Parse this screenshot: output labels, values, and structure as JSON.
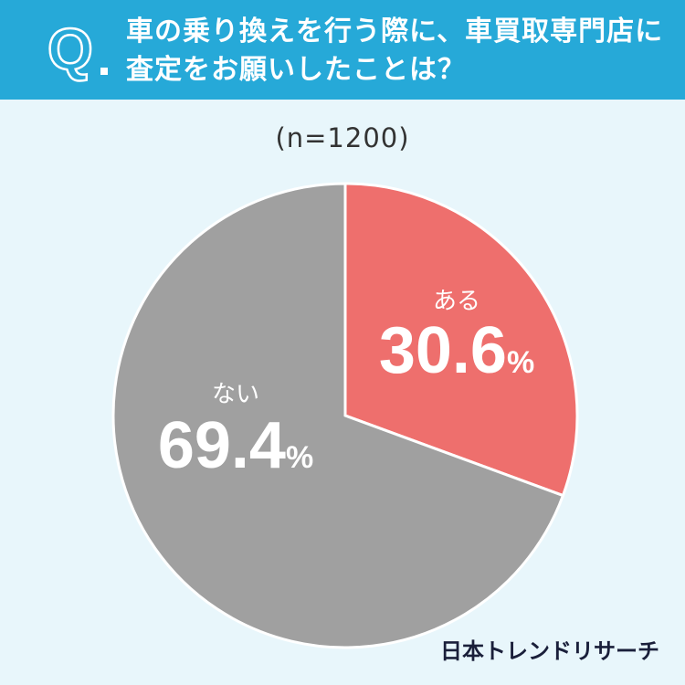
{
  "question": {
    "mark": "Q.",
    "line1": "車の乗り換えを行う際に、車買取専門店に",
    "line2": "査定をお願いしたことは？"
  },
  "sample_size": "(n=1200)",
  "brand": "日本トレンドリサーチ",
  "colors": {
    "header": "#26a9d8",
    "background": "#e8f6fb",
    "yes": "#ee6f6d",
    "no": "#a0a0a0"
  },
  "chart_data": {
    "type": "pie",
    "start_angle_deg": 0,
    "direction": "clockwise",
    "slices": [
      {
        "label": "ある",
        "value": 30.6,
        "value_text": "30.6",
        "unit": "%",
        "color": "#ee6f6d"
      },
      {
        "label": "ない",
        "value": 69.4,
        "value_text": "69.4",
        "unit": "%",
        "color": "#a0a0a0"
      }
    ]
  }
}
